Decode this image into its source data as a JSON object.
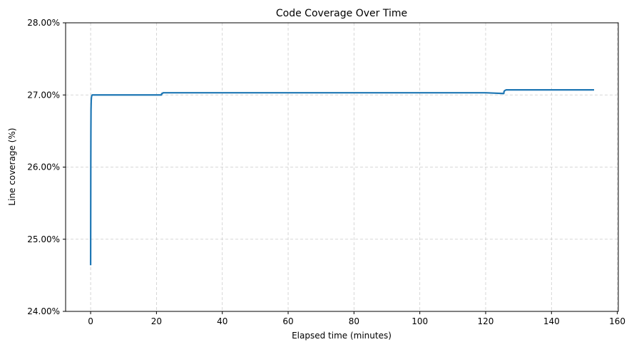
{
  "chart_data": {
    "type": "line",
    "title": "Code Coverage Over Time",
    "xlabel": "Elapsed time (minutes)",
    "ylabel": "Line coverage (%)",
    "xlim": [
      -7.6,
      160.3
    ],
    "ylim": [
      24.0,
      28.0
    ],
    "xticks": [
      0,
      20,
      40,
      60,
      80,
      100,
      120,
      140,
      160
    ],
    "xtick_labels": [
      "0",
      "20",
      "40",
      "60",
      "80",
      "100",
      "120",
      "140",
      "160"
    ],
    "yticks": [
      24,
      25,
      26,
      27,
      28
    ],
    "ytick_labels": [
      "24.00%",
      "25.00%",
      "26.00%",
      "27.00%",
      "28.00%"
    ],
    "grid": true,
    "legend": "none",
    "series": [
      {
        "color": "#1f77b4",
        "x": [
          0,
          0.02,
          0.05,
          0.08,
          0.12,
          0.18,
          0.25,
          0.35,
          0.5,
          0.8,
          1.5,
          5,
          10,
          15,
          21.5,
          21.6,
          21.8,
          22.0,
          40,
          60,
          80,
          100,
          120,
          125.5,
          125.6,
          125.8,
          126.2,
          127.0,
          140,
          152.7
        ],
        "y": [
          24.65,
          25.2,
          26.05,
          26.5,
          26.8,
          26.92,
          26.97,
          26.99,
          27.0,
          27.0,
          27.0,
          27.0,
          27.0,
          27.0,
          27.0,
          27.02,
          27.02,
          27.03,
          27.03,
          27.03,
          27.03,
          27.03,
          27.03,
          27.02,
          27.05,
          27.06,
          27.07,
          27.07,
          27.07,
          27.07
        ]
      }
    ]
  }
}
